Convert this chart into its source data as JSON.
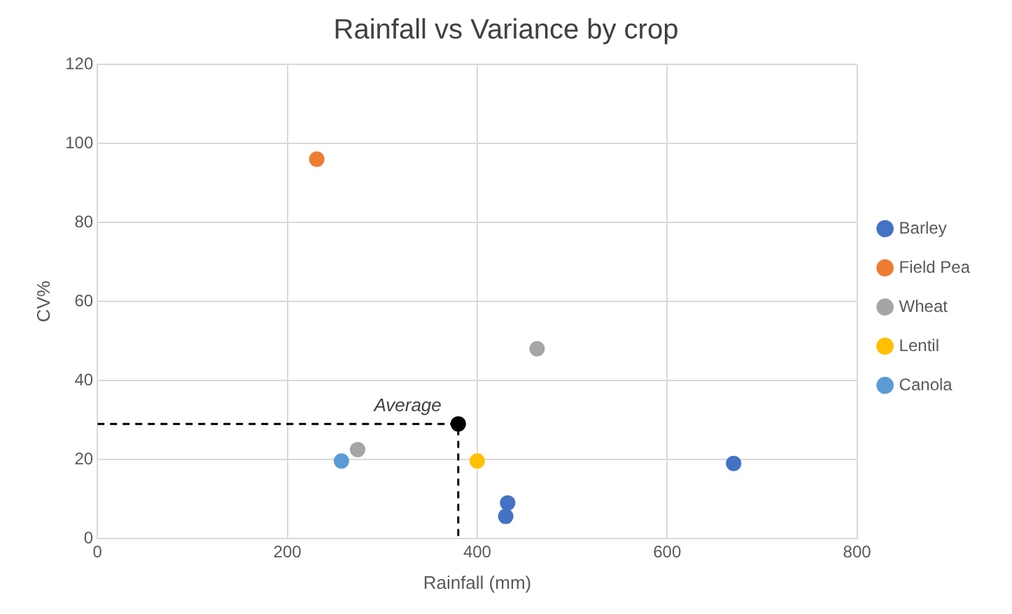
{
  "chart_data": {
    "type": "scatter",
    "title": "Rainfall vs Variance by crop",
    "xlabel": "Rainfall (mm)",
    "ylabel": "CV%",
    "xlim": [
      0,
      800
    ],
    "xticks": [
      0,
      200,
      400,
      600,
      800
    ],
    "ylim": [
      0,
      120
    ],
    "yticks": [
      0,
      20,
      40,
      60,
      80,
      100,
      120
    ],
    "grid": true,
    "legend": "right",
    "marker": "circle",
    "series": [
      {
        "name": "Barley",
        "color": "#4472c4",
        "x": [
          670,
          432,
          430
        ],
        "values": [
          19,
          9,
          5.6
        ]
      },
      {
        "name": "Field Pea",
        "color": "#ed7d31",
        "x": [
          231
        ],
        "values": [
          96
        ]
      },
      {
        "name": "Wheat",
        "color": "#a5a5a5",
        "x": [
          463,
          274
        ],
        "values": [
          48,
          22.5
        ]
      },
      {
        "name": "Lentil",
        "color": "#ffc000",
        "x": [
          400
        ],
        "values": [
          19.6
        ]
      },
      {
        "name": "Canola",
        "color": "#5b9bd5",
        "x": [
          257
        ],
        "values": [
          19.6
        ]
      },
      {
        "type": "line",
        "color": "#000000",
        "line_style": "dashed",
        "marker": "none",
        "x": [
          0,
          380,
          380
        ],
        "values": [
          29,
          29,
          0
        ]
      },
      {
        "color": "#000000",
        "x": [
          380
        ],
        "values": [
          29
        ]
      }
    ],
    "annotations": [
      {
        "text": "Average",
        "x": 380,
        "y": 29
      }
    ]
  }
}
